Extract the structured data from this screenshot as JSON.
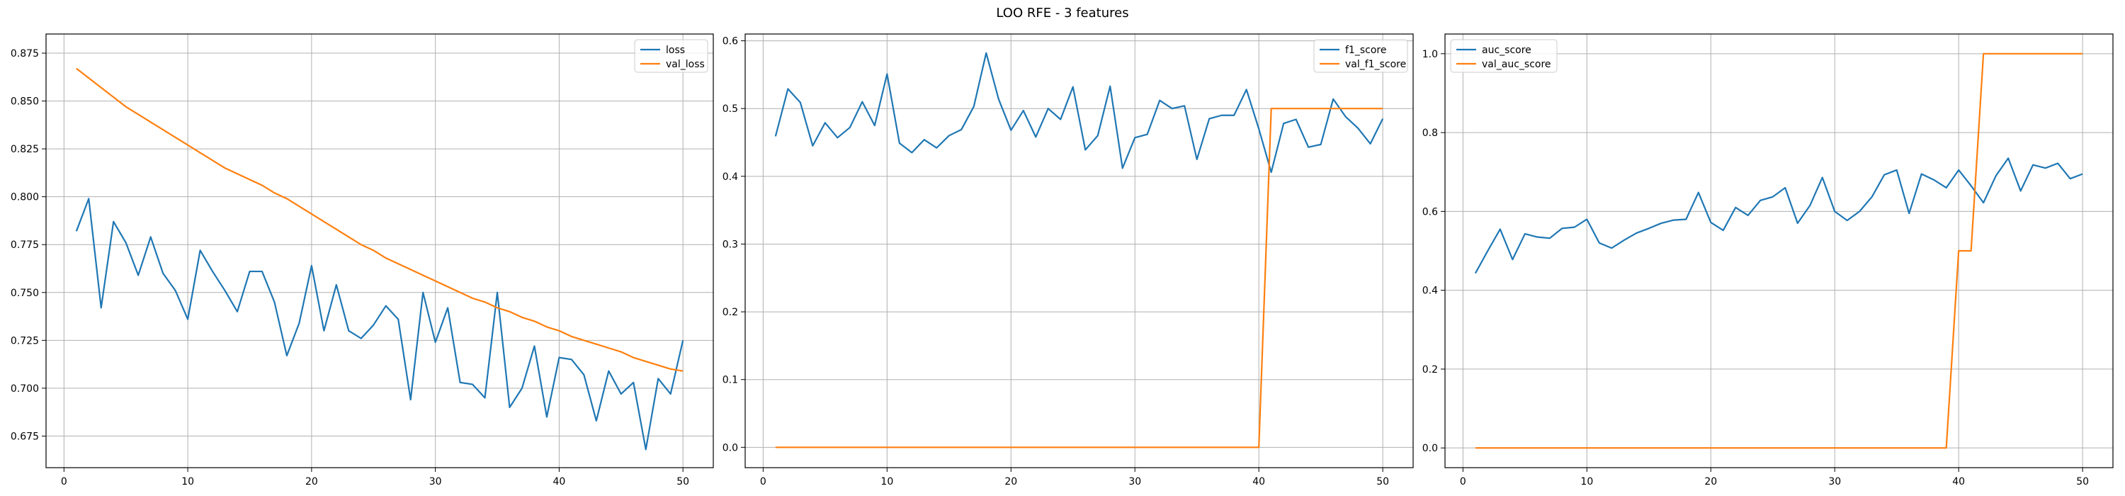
{
  "figure": {
    "title": "LOO RFE - 3 features"
  },
  "colors": {
    "series1": "#1f77b4",
    "series2": "#ff7f0e",
    "grid": "#b0b0b0",
    "axis": "#000000"
  },
  "chart_data": [
    {
      "type": "line",
      "title": "",
      "xlabel": "",
      "ylabel": "",
      "xlim": [
        -1.45,
        52.45
      ],
      "ylim": [
        0.6585,
        0.885
      ],
      "xticks": [
        0,
        10,
        20,
        30,
        40,
        50
      ],
      "yticks": [
        0.675,
        0.7,
        0.725,
        0.75,
        0.775,
        0.8,
        0.825,
        0.85,
        0.875
      ],
      "ytick_format": 3,
      "grid": true,
      "legend_position": "upper-right",
      "x": [
        1,
        2,
        3,
        4,
        5,
        6,
        7,
        8,
        9,
        10,
        11,
        12,
        13,
        14,
        15,
        16,
        17,
        18,
        19,
        20,
        21,
        22,
        23,
        24,
        25,
        26,
        27,
        28,
        29,
        30,
        31,
        32,
        33,
        34,
        35,
        36,
        37,
        38,
        39,
        40,
        41,
        42,
        43,
        44,
        45,
        46,
        47,
        48,
        49,
        50
      ],
      "series": [
        {
          "name": "loss",
          "color": "#1f77b4",
          "values": [
            0.782,
            0.799,
            0.742,
            0.787,
            0.776,
            0.759,
            0.779,
            0.76,
            0.751,
            0.736,
            0.772,
            0.761,
            0.751,
            0.74,
            0.761,
            0.761,
            0.745,
            0.717,
            0.734,
            0.764,
            0.73,
            0.754,
            0.73,
            0.726,
            0.733,
            0.743,
            0.736,
            0.694,
            0.75,
            0.724,
            0.742,
            0.703,
            0.702,
            0.695,
            0.75,
            0.69,
            0.7,
            0.722,
            0.685,
            0.716,
            0.715,
            0.707,
            0.683,
            0.709,
            0.697,
            0.703,
            0.668,
            0.705,
            0.697,
            0.725
          ]
        },
        {
          "name": "val_loss",
          "color": "#ff7f0e",
          "values": [
            0.867,
            0.862,
            0.857,
            0.852,
            0.847,
            0.843,
            0.839,
            0.835,
            0.831,
            0.827,
            0.823,
            0.819,
            0.815,
            0.812,
            0.809,
            0.806,
            0.802,
            0.799,
            0.795,
            0.791,
            0.787,
            0.783,
            0.779,
            0.775,
            0.772,
            0.768,
            0.765,
            0.762,
            0.759,
            0.756,
            0.753,
            0.75,
            0.747,
            0.745,
            0.742,
            0.74,
            0.737,
            0.735,
            0.732,
            0.73,
            0.727,
            0.725,
            0.723,
            0.721,
            0.719,
            0.716,
            0.714,
            0.712,
            0.71,
            0.709
          ]
        }
      ]
    },
    {
      "type": "line",
      "title": "",
      "xlabel": "",
      "ylabel": "",
      "xlim": [
        -1.45,
        52.45
      ],
      "ylim": [
        -0.03,
        0.61
      ],
      "xticks": [
        0,
        10,
        20,
        30,
        40,
        50
      ],
      "yticks": [
        0.0,
        0.1,
        0.2,
        0.3,
        0.4,
        0.5,
        0.6
      ],
      "ytick_format": 1,
      "grid": true,
      "legend_position": "upper-right",
      "x": [
        1,
        2,
        3,
        4,
        5,
        6,
        7,
        8,
        9,
        10,
        11,
        12,
        13,
        14,
        15,
        16,
        17,
        18,
        19,
        20,
        21,
        22,
        23,
        24,
        25,
        26,
        27,
        28,
        29,
        30,
        31,
        32,
        33,
        34,
        35,
        36,
        37,
        38,
        39,
        40,
        41,
        42,
        43,
        44,
        45,
        46,
        47,
        48,
        49,
        50
      ],
      "series": [
        {
          "name": "f1_score",
          "color": "#1f77b4",
          "values": [
            0.459,
            0.529,
            0.509,
            0.445,
            0.479,
            0.457,
            0.472,
            0.51,
            0.475,
            0.551,
            0.449,
            0.435,
            0.454,
            0.442,
            0.46,
            0.469,
            0.503,
            0.582,
            0.514,
            0.468,
            0.497,
            0.458,
            0.5,
            0.484,
            0.532,
            0.439,
            0.46,
            0.533,
            0.412,
            0.457,
            0.462,
            0.512,
            0.5,
            0.504,
            0.425,
            0.485,
            0.49,
            0.49,
            0.528,
            0.47,
            0.406,
            0.478,
            0.484,
            0.443,
            0.447,
            0.514,
            0.488,
            0.471,
            0.448,
            0.485
          ]
        },
        {
          "name": "val_f1_score",
          "color": "#ff7f0e",
          "values": [
            0,
            0,
            0,
            0,
            0,
            0,
            0,
            0,
            0,
            0,
            0,
            0,
            0,
            0,
            0,
            0,
            0,
            0,
            0,
            0,
            0,
            0,
            0,
            0,
            0,
            0,
            0,
            0,
            0,
            0,
            0,
            0,
            0,
            0,
            0,
            0,
            0,
            0,
            0,
            0,
            0.5,
            0.5,
            0.5,
            0.5,
            0.5,
            0.5,
            0.5,
            0.5,
            0.5,
            0.5
          ]
        }
      ]
    },
    {
      "type": "line",
      "title": "",
      "xlabel": "",
      "ylabel": "",
      "xlim": [
        -1.45,
        52.45
      ],
      "ylim": [
        -0.05,
        1.05
      ],
      "xticks": [
        0,
        10,
        20,
        30,
        40,
        50
      ],
      "yticks": [
        0.0,
        0.2,
        0.4,
        0.6,
        0.8,
        1.0
      ],
      "ytick_format": 1,
      "grid": true,
      "legend_position": "upper-left",
      "x": [
        1,
        2,
        3,
        4,
        5,
        6,
        7,
        8,
        9,
        10,
        11,
        12,
        13,
        14,
        15,
        16,
        17,
        18,
        19,
        20,
        21,
        22,
        23,
        24,
        25,
        26,
        27,
        28,
        29,
        30,
        31,
        32,
        33,
        34,
        35,
        36,
        37,
        38,
        39,
        40,
        41,
        42,
        43,
        44,
        45,
        46,
        47,
        48,
        49,
        50
      ],
      "series": [
        {
          "name": "auc_score",
          "color": "#1f77b4",
          "values": [
            0.443,
            0.5,
            0.555,
            0.478,
            0.543,
            0.535,
            0.532,
            0.557,
            0.56,
            0.58,
            0.52,
            0.507,
            0.527,
            0.545,
            0.557,
            0.57,
            0.578,
            0.58,
            0.648,
            0.572,
            0.552,
            0.61,
            0.59,
            0.628,
            0.637,
            0.66,
            0.57,
            0.615,
            0.686,
            0.6,
            0.577,
            0.6,
            0.637,
            0.693,
            0.705,
            0.595,
            0.695,
            0.68,
            0.66,
            0.705,
            0.665,
            0.622,
            0.69,
            0.735,
            0.652,
            0.718,
            0.71,
            0.722,
            0.683,
            0.695
          ]
        },
        {
          "name": "val_auc_score",
          "color": "#ff7f0e",
          "values": [
            0,
            0,
            0,
            0,
            0,
            0,
            0,
            0,
            0,
            0,
            0,
            0,
            0,
            0,
            0,
            0,
            0,
            0,
            0,
            0,
            0,
            0,
            0,
            0,
            0,
            0,
            0,
            0,
            0,
            0,
            0,
            0,
            0,
            0,
            0,
            0,
            0,
            0,
            0,
            0.5,
            0.5,
            1.0,
            1.0,
            1.0,
            1.0,
            1.0,
            1.0,
            1.0,
            1.0,
            1.0
          ]
        }
      ]
    }
  ]
}
